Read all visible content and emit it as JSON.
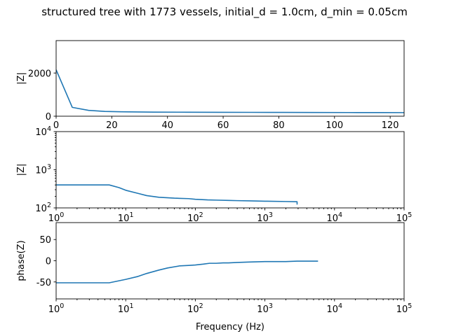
{
  "chart_data": {
    "title": "structured tree with 1773 vessels, initial_d = 1.0cm, d_min = 0.05cm",
    "color": "#1f77b4",
    "panels": [
      {
        "type": "line",
        "xscale": "linear",
        "yscale": "linear",
        "xlim": [
          0,
          125
        ],
        "ylim": [
          0,
          3500
        ],
        "xticks": [
          0,
          20,
          40,
          60,
          80,
          100,
          120
        ],
        "yticks": [
          0,
          2000
        ],
        "xlabel": "",
        "ylabel": "|Z|",
        "x": [
          0,
          5.8,
          11.7,
          17.5,
          23.4,
          29.2,
          35,
          46.7,
          58.4,
          70,
          81.7,
          93.4,
          105,
          116.7,
          125
        ],
        "y": [
          2150,
          410,
          270,
          220,
          205,
          195,
          190,
          185,
          180,
          178,
          175,
          172,
          170,
          168,
          166
        ]
      },
      {
        "type": "line",
        "xscale": "log",
        "yscale": "log",
        "xlim": [
          1,
          100000
        ],
        "ylim": [
          100,
          10000
        ],
        "xticks": [
          1,
          10,
          100,
          1000,
          10000,
          100000
        ],
        "yticks": [
          100,
          1000,
          10000
        ],
        "xlabel": "",
        "ylabel": "|Z|",
        "x": [
          1,
          5.8,
          8,
          10,
          15,
          20,
          30,
          50,
          80,
          100,
          150,
          200,
          300,
          400,
          600,
          1000,
          2000,
          2900,
          2900
        ],
        "y": [
          400,
          400,
          340,
          290,
          240,
          210,
          190,
          180,
          175,
          168,
          162,
          160,
          157,
          155,
          153,
          150,
          147,
          145,
          122
        ]
      },
      {
        "type": "line",
        "xscale": "log",
        "yscale": "linear",
        "xlim": [
          1,
          100000
        ],
        "ylim": [
          -90,
          90
        ],
        "xticks": [
          1,
          10,
          100,
          1000,
          10000,
          100000
        ],
        "yticks": [
          -50,
          0,
          50
        ],
        "xlabel": "Frequency (Hz)",
        "ylabel": "phase(Z)",
        "x": [
          1,
          5.8,
          10,
          15,
          20,
          30,
          40,
          60,
          80,
          100,
          130,
          160,
          200,
          250,
          300,
          400,
          600,
          1000,
          2000,
          2900,
          5800
        ],
        "y": [
          -52,
          -52,
          -44,
          -37,
          -30,
          -22,
          -17,
          -12,
          -11,
          -10,
          -8,
          -6,
          -6,
          -5,
          -5,
          -4,
          -3,
          -2,
          -2,
          -1,
          -1
        ]
      }
    ]
  }
}
